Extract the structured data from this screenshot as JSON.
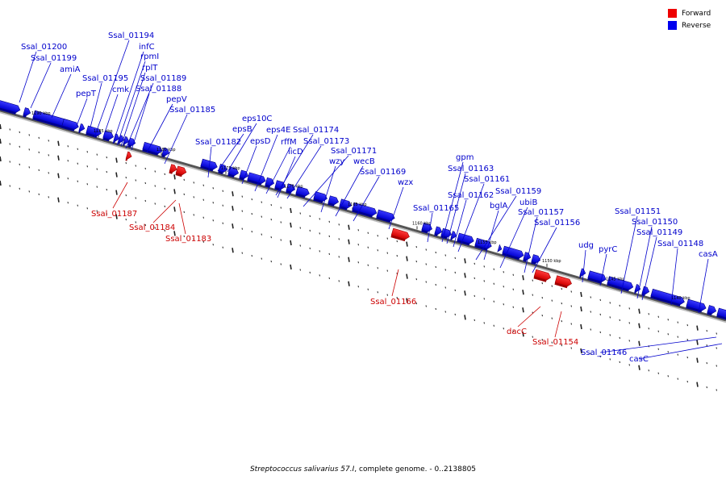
{
  "legend": {
    "forward_label": "Forward",
    "reverse_label": "Reverse",
    "forward_color": "#ee0000",
    "reverse_color": "#0000ee"
  },
  "caption": {
    "species": "Streptococcus salivarius 57.I",
    "rest": ", complete genome. - 0..2138805"
  },
  "scale_labels": [
    "1190 kbp",
    "1185 kbp",
    "1180 kbp",
    "1175 kbp",
    "1170 kbp",
    "1165 kbp",
    "1160 kbp",
    "1155 kbp",
    "1150 kbp",
    "1145 kbp",
    "1140 kbp"
  ],
  "genes_reverse": [
    "Ssal_01200",
    "Ssal_01199",
    "amiA",
    "Ssal_01194",
    "infC",
    "rpmI",
    "rplT",
    "pepT",
    "Ssal_01195",
    "Ssal_01189",
    "cmk",
    "Ssal_01188",
    "pepV",
    "Ssal_01185",
    "eps10C",
    "epsB",
    "Ssal_01182",
    "epsD",
    "eps4E",
    "Ssal_01174",
    "rffM",
    "Ssal_01173",
    "licD",
    "Ssal_01171",
    "wecB",
    "wzy",
    "Ssal_01169",
    "wzx",
    "gpm",
    "Ssal_01163",
    "Ssal_01161",
    "Ssal_01162",
    "Ssal_01159",
    "ubiB",
    "Ssal_01165",
    "bglA",
    "Ssal_01157",
    "Ssal_01156",
    "Ssal_01151",
    "Ssal_01150",
    "Ssal_01149",
    "udg",
    "pyrC",
    "Ssal_01148",
    "casA",
    "Ssal_01146",
    "casC"
  ],
  "genes_forward": [
    "Ssal_01187",
    "Ssal_01184",
    "Ssal_01183",
    "Ssal_01166",
    "dacC",
    "Ssal_01154"
  ]
}
